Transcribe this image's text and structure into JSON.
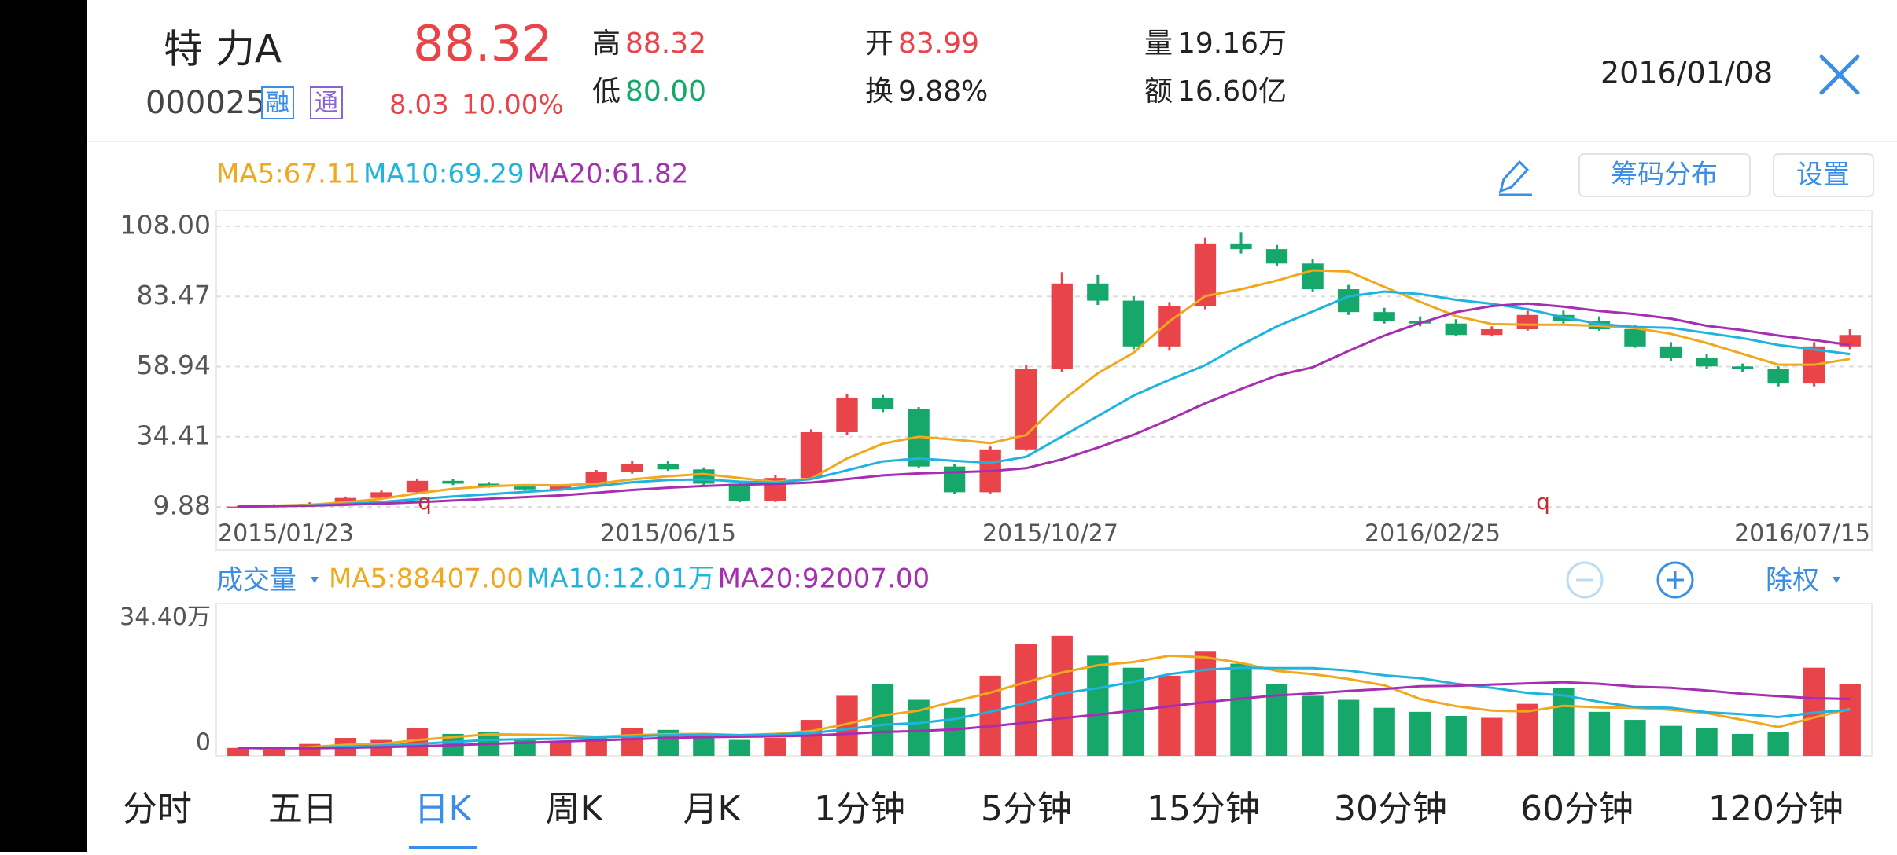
{
  "header": {
    "name": "特 力A",
    "code": "000025",
    "badges": [
      "融",
      "通"
    ],
    "price": "88.32",
    "change": "8.03",
    "change_pct": "10.00%",
    "quotes": [
      {
        "label": "高",
        "value": "88.32"
      },
      {
        "label": "低",
        "value": "80.00"
      },
      {
        "label": "开",
        "value": "83.99"
      },
      {
        "label": "换",
        "value": "9.88%"
      },
      {
        "label": "量",
        "value": "19.16万"
      },
      {
        "label": "额",
        "value": "16.60亿"
      }
    ],
    "date": "2016/01/08"
  },
  "toolbar": {
    "buttons": [
      "筹码分布",
      "设置"
    ]
  },
  "chart_data": [
    {
      "type": "candlestick",
      "up_color": "#e8444a",
      "down_color": "#16a86b",
      "grid": true,
      "ylim": [
        5.76,
        112.4
      ],
      "yticks": [
        {
          "value": 9.88,
          "label": "9.88"
        },
        34.41,
        58.94,
        83.47,
        {
          "value": 108,
          "label": "108.00"
        }
      ],
      "xlabels": [
        "2015/01/23",
        "2015/06/15",
        "2015/10/27",
        "2016/02/25",
        "2016/07/15"
      ],
      "open": [
        9.9,
        10,
        10.5,
        11,
        13,
        15,
        19,
        18,
        17,
        16,
        17,
        22,
        25,
        23,
        18,
        12,
        20,
        36,
        48,
        44,
        24,
        15,
        30,
        58,
        88,
        82,
        66,
        80,
        102,
        100,
        95,
        86,
        78,
        75,
        74,
        70,
        72,
        77,
        75,
        72,
        66,
        62,
        59,
        58,
        53,
        66
      ],
      "close": [
        10,
        10.5,
        11,
        13,
        15,
        19,
        18,
        17,
        16,
        17,
        22,
        25,
        23,
        18,
        12,
        20,
        36,
        48,
        44,
        24,
        15,
        30,
        58,
        88,
        82,
        66,
        80,
        102,
        100,
        95,
        86,
        78,
        75,
        74,
        70,
        72,
        77,
        75,
        72,
        66,
        62,
        59,
        58,
        53,
        66,
        70
      ],
      "high": [
        10.3,
        10.8,
        11.5,
        13.5,
        15.6,
        19.8,
        19.5,
        18.6,
        17.5,
        17.6,
        22.8,
        25.9,
        25.8,
        23.7,
        18.8,
        20.9,
        37,
        49.5,
        49,
        44.8,
        24.8,
        31,
        59.5,
        92,
        91,
        83.5,
        81.5,
        104,
        106,
        101.5,
        96.5,
        87.5,
        79.5,
        76.5,
        75.5,
        73,
        78.5,
        78.5,
        76.5,
        73.5,
        67.5,
        63.5,
        60,
        59,
        67.5,
        72
      ],
      "low": [
        9.7,
        9.8,
        10.2,
        10.8,
        12.6,
        14.6,
        17.5,
        16.6,
        15.6,
        15.5,
        16.6,
        21.5,
        22.5,
        17.5,
        11.5,
        11.6,
        19.5,
        35,
        43,
        23.5,
        14.5,
        14.6,
        29.5,
        57,
        80.5,
        65,
        64.5,
        79,
        98.5,
        94,
        85,
        77,
        74,
        73,
        69.5,
        69.5,
        71.5,
        74,
        71.5,
        65.5,
        61,
        58,
        57,
        52,
        52,
        65
      ],
      "series": [
        {
          "name": "MA5:67.11",
          "color": "#f0a81e",
          "values": [
            10,
            10.3,
            10.6,
            11.5,
            12.7,
            14.6,
            16.2,
            17.1,
            17.5,
            17.4,
            18,
            19.5,
            20.6,
            21.4,
            20,
            18.6,
            19.8,
            26.8,
            32,
            34.4,
            33.4,
            32.2,
            35,
            47,
            56.6,
            63.8,
            74.8,
            83.6,
            86,
            89,
            92.6,
            92.2,
            86.8,
            81.6,
            76.6,
            73.8,
            73.6,
            73.6,
            73.2,
            72.4,
            70.4,
            67.2,
            63.4,
            59.6,
            59.6,
            61.6
          ]
        },
        {
          "name": "MA10:69.29",
          "color": "#1fb3dd",
          "values": [
            10,
            10.2,
            10.4,
            10.9,
            11.6,
            12.6,
            13.5,
            14.3,
            15.1,
            15.9,
            17.1,
            18.5,
            19.3,
            19.5,
            18.7,
            18.3,
            19.6,
            22.7,
            25.8,
            26.8,
            26,
            25.3,
            27.4,
            34.5,
            41.6,
            48.8,
            54.3,
            59.4,
            66.5,
            73,
            78.2,
            83.5,
            85.2,
            84.3,
            82.3,
            80.9,
            79,
            76.2,
            73.8,
            72.8,
            72.5,
            70.7,
            68.9,
            66.5,
            64.9,
            63.3
          ]
        },
        {
          "name": "MA20:61.82",
          "color": "#a52fb0",
          "values": [
            10,
            10.1,
            10.3,
            10.6,
            11,
            11.5,
            12.1,
            12.7,
            13.3,
            13.9,
            14.8,
            15.8,
            16.6,
            17.2,
            17.6,
            17.9,
            18.4,
            19.6,
            20.9,
            21.6,
            22,
            22.4,
            23.4,
            26.5,
            30.6,
            35.1,
            40.4,
            46.1,
            51.1,
            55.8,
            58.7,
            64.4,
            69.8,
            74.2,
            78,
            80.1,
            81,
            79.9,
            78.4,
            77.3,
            75.7,
            73.2,
            71.7,
            69.8,
            68.2,
            66.5
          ]
        }
      ],
      "markers": [
        "q",
        "q"
      ]
    },
    {
      "type": "bar",
      "title": "成交量",
      "ylim": [
        0,
        380000
      ],
      "yticks": [
        0,
        {
          "value": 344000,
          "label": "34.40万"
        }
      ],
      "values": [
        20000,
        15000,
        30000,
        45000,
        40000,
        70000,
        55000,
        60000,
        40000,
        35000,
        50000,
        70000,
        65000,
        55000,
        40000,
        45000,
        90000,
        150000,
        180000,
        140000,
        120000,
        200000,
        280000,
        300000,
        250000,
        220000,
        200000,
        260000,
        230000,
        180000,
        150000,
        140000,
        120000,
        110000,
        100000,
        95000,
        130000,
        170000,
        110000,
        90000,
        75000,
        70000,
        55000,
        60000,
        220000,
        180000
      ],
      "series": [
        {
          "name": "MA5:88407.00",
          "color": "#f0a81e",
          "values": [
            20000,
            18000,
            22000,
            28000,
            30000,
            40000,
            47000,
            54000,
            53000,
            52000,
            48000,
            52000,
            54000,
            55000,
            52000,
            55000,
            62000,
            80000,
            101000,
            113000,
            136000,
            158000,
            184000,
            208000,
            226000,
            234000,
            250000,
            246000,
            232000,
            212000,
            204000,
            192000,
            176000,
            142000,
            124000,
            113000,
            111000,
            125000,
            121000,
            120000,
            115000,
            107000,
            90000,
            72000,
            96000,
            117000
          ]
        },
        {
          "name": "MA10:12.01万",
          "color": "#1fb3dd",
          "values": [
            20000,
            19000,
            20000,
            23000,
            26000,
            30000,
            35000,
            40000,
            42000,
            43000,
            46000,
            49000,
            52000,
            53000,
            52000,
            53000,
            57000,
            67000,
            78000,
            82000,
            92000,
            110000,
            132000,
            156000,
            169000,
            185000,
            204000,
            215000,
            220000,
            219000,
            219000,
            213000,
            201000,
            194000,
            180000,
            170000,
            157000,
            151000,
            135000,
            122000,
            120000,
            109000,
            104000,
            97000,
            108000,
            115000
          ]
        },
        {
          "name": "MA20:92007.00",
          "color": "#a52fb0",
          "values": [
            20000,
            19000,
            19000,
            20000,
            22000,
            24000,
            27000,
            30000,
            33000,
            36000,
            39000,
            42000,
            45000,
            47000,
            48000,
            49000,
            51000,
            55000,
            60000,
            62000,
            66000,
            74000,
            83000,
            94000,
            103000,
            113000,
            124000,
            134000,
            143000,
            151000,
            156000,
            162000,
            167000,
            174000,
            175000,
            178000,
            181000,
            184000,
            180000,
            173000,
            170000,
            163000,
            155000,
            149000,
            144000,
            142000
          ]
        }
      ],
      "adjust": "除权"
    }
  ],
  "tabs": [
    "分时",
    "五日",
    "日K",
    "周K",
    "月K",
    "1分钟",
    "5分钟",
    "15分钟",
    "30分钟",
    "60分钟",
    "120分钟"
  ],
  "active_tab": 2
}
